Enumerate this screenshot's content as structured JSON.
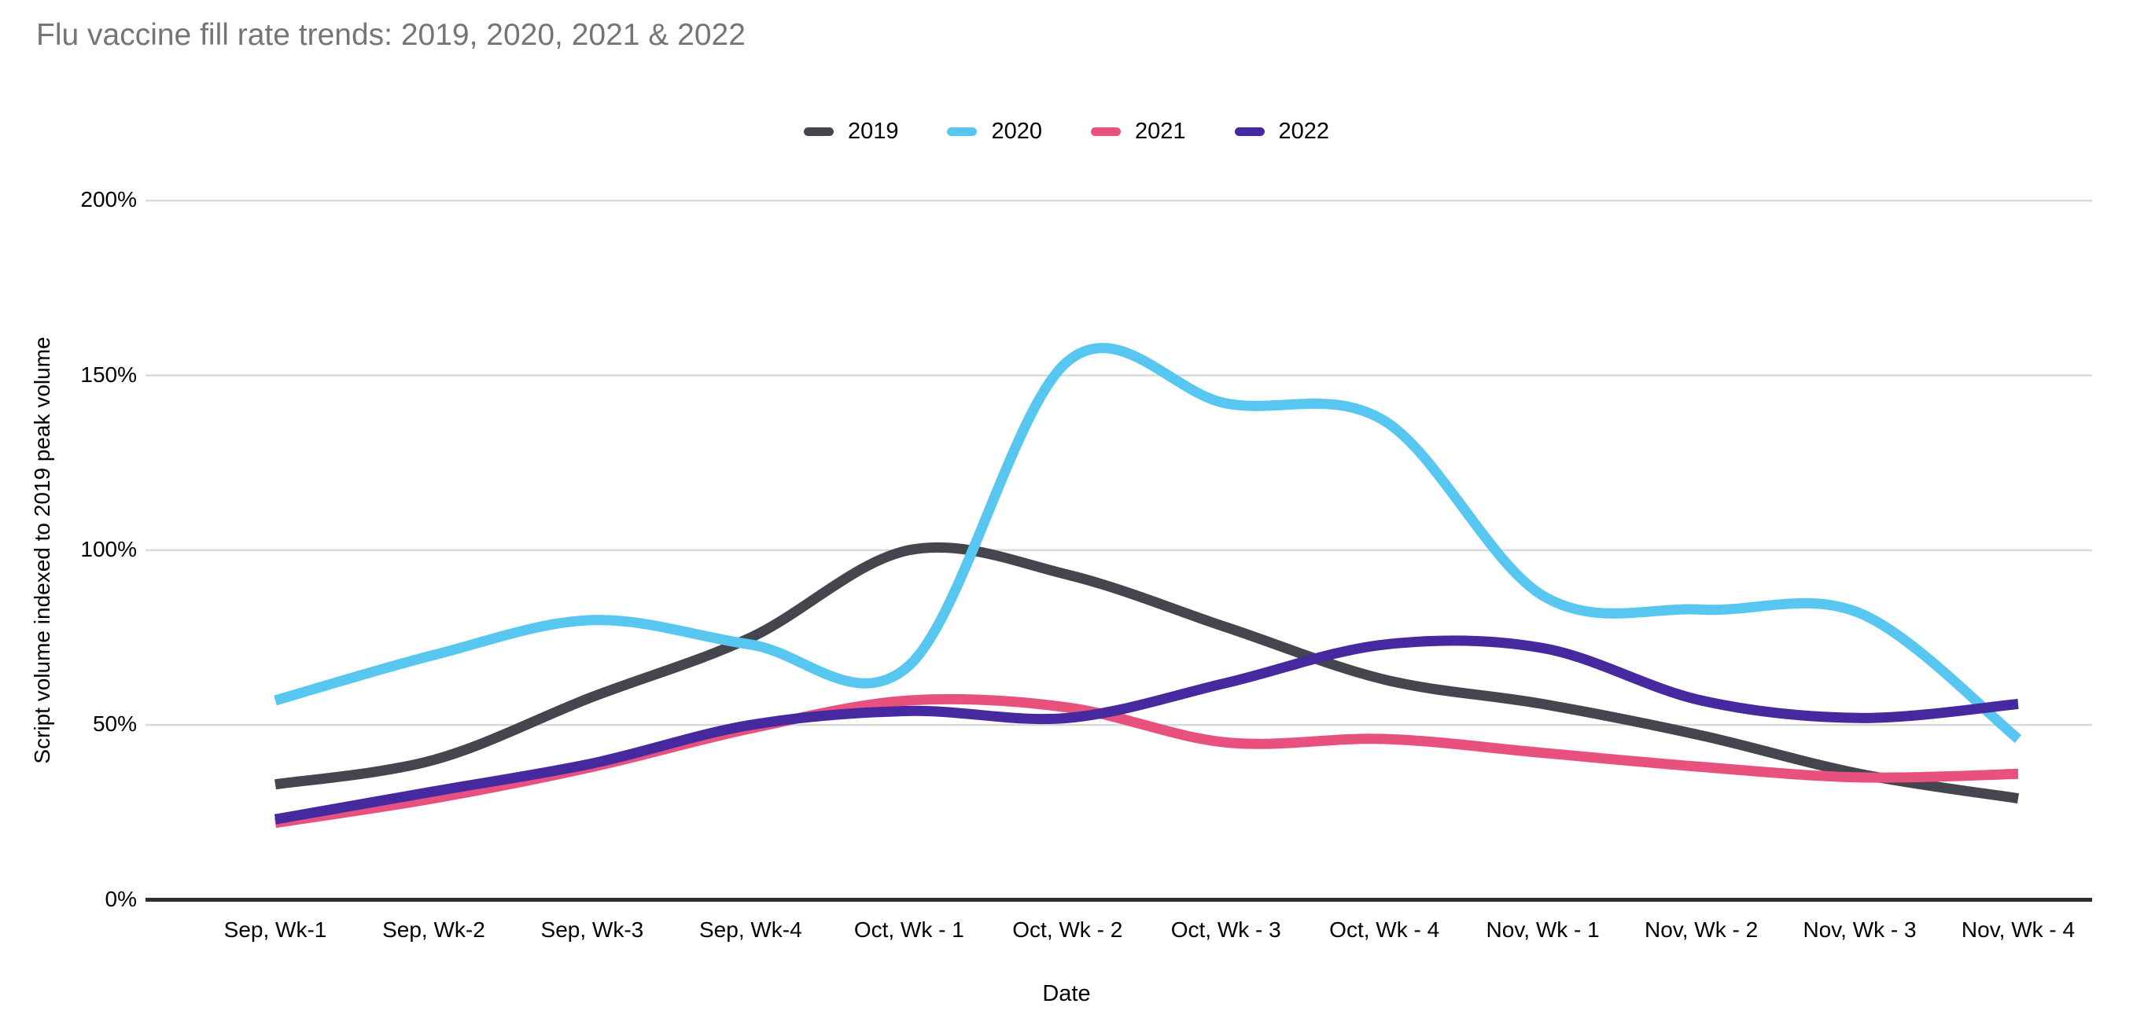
{
  "title": "Flu vaccine fill rate trends: 2019, 2020, 2021 & 2022",
  "chart_data": {
    "type": "line",
    "title": "Flu vaccine fill rate trends: 2019, 2020, 2021 & 2022",
    "xlabel": "Date",
    "ylabel": "Script volume indexed to 2019 peak volume",
    "ylim": [
      0,
      200
    ],
    "yticks": [
      {
        "value": 0,
        "label": "0%"
      },
      {
        "value": 50,
        "label": "50%"
      },
      {
        "value": 100,
        "label": "100%"
      },
      {
        "value": 150,
        "label": "150%"
      },
      {
        "value": 200,
        "label": "200%"
      }
    ],
    "grid": "horizontal",
    "legend_position": "top",
    "smooth": true,
    "categories": [
      "Sep, Wk-1",
      "Sep, Wk-2",
      "Sep, Wk-3",
      "Sep, Wk-4",
      "Oct, Wk - 1",
      "Oct, Wk - 2",
      "Oct, Wk - 3",
      "Oct, Wk - 4",
      "Nov, Wk - 1",
      "Nov, Wk - 2",
      "Nov, Wk - 3",
      "Nov, Wk - 4"
    ],
    "series": [
      {
        "name": "2019",
        "color": "#45454d",
        "values": [
          33,
          40,
          58,
          75,
          100,
          93,
          78,
          63,
          56,
          47,
          36,
          29
        ]
      },
      {
        "name": "2020",
        "color": "#57c7f2",
        "values": [
          57,
          70,
          80,
          73,
          67,
          154,
          142,
          137,
          87,
          83,
          82,
          46
        ]
      },
      {
        "name": "2021",
        "color": "#e8517e",
        "values": [
          22,
          29,
          38,
          49,
          57,
          55,
          45,
          46,
          42,
          38,
          35,
          36
        ]
      },
      {
        "name": "2022",
        "color": "#46289f",
        "values": [
          23,
          31,
          39,
          50,
          54,
          52,
          62,
          73,
          72,
          57,
          52,
          56
        ]
      }
    ]
  },
  "colors": {
    "background": "#ffffff",
    "title_text": "#757575",
    "tick_text": "#000000",
    "gridline": "#d9d9d9",
    "axis_line": "#2e2e2e"
  }
}
